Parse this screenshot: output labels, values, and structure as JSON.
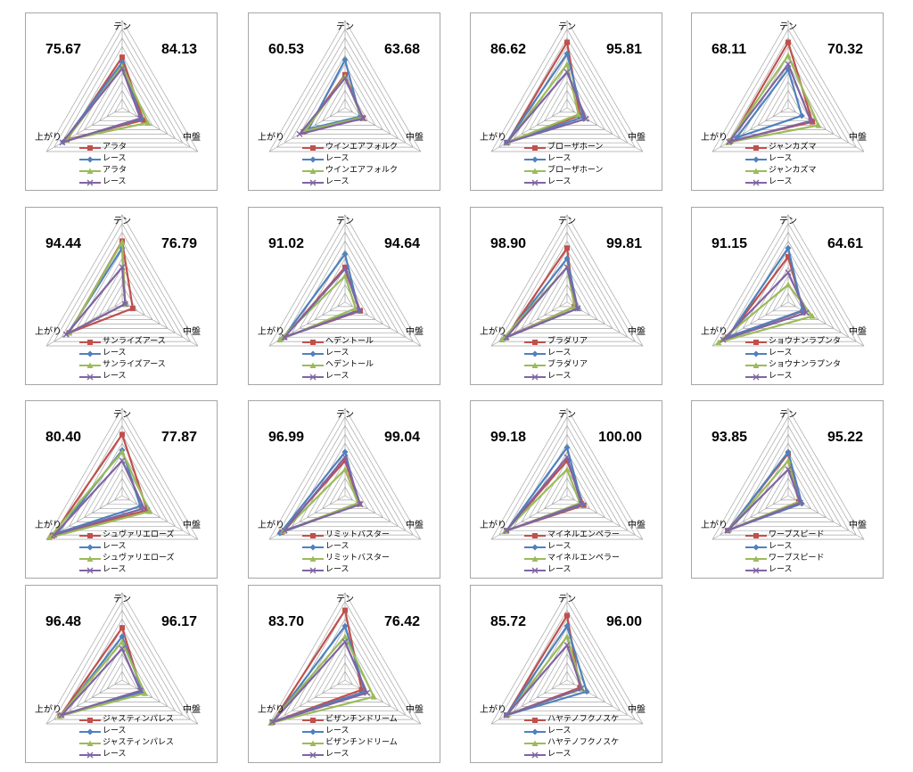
{
  "axes": [
    "テン",
    "中盤",
    "上がり"
  ],
  "legend_race_label": "レース",
  "colors": {
    "red": "#c0504d",
    "blue": "#4f81bd",
    "green": "#9bbb59",
    "purple": "#8064a2",
    "grid": "#a6a6a6"
  },
  "chart_data": [
    {
      "type": "radar",
      "name": "アラタ",
      "left_value": "75.67",
      "right_value": "84.13",
      "series": [
        {
          "name": "アラタ",
          "values": [
            0.58,
            0.28,
            0.73
          ]
        },
        {
          "name": "レース",
          "values": [
            0.52,
            0.25,
            0.78
          ]
        },
        {
          "name": "アラタ",
          "values": [
            0.48,
            0.34,
            0.74
          ]
        },
        {
          "name": "レース",
          "values": [
            0.45,
            0.24,
            0.79
          ]
        }
      ]
    },
    {
      "type": "radar",
      "name": "ウインエアフォルク",
      "left_value": "60.53",
      "right_value": "63.68",
      "series": [
        {
          "name": "ウインエアフォルク",
          "values": [
            0.38,
            0.23,
            0.55
          ]
        },
        {
          "name": "レース",
          "values": [
            0.55,
            0.2,
            0.48
          ]
        },
        {
          "name": "ウインエアフォルク",
          "values": [
            0.36,
            0.22,
            0.53
          ]
        },
        {
          "name": "レース",
          "values": [
            0.34,
            0.24,
            0.6
          ]
        }
      ]
    },
    {
      "type": "radar",
      "name": "ブローザホーン",
      "left_value": "86.62",
      "right_value": "95.81",
      "series": [
        {
          "name": "ブローザホーン",
          "values": [
            0.75,
            0.17,
            0.79
          ]
        },
        {
          "name": "レース",
          "values": [
            0.62,
            0.21,
            0.8
          ]
        },
        {
          "name": "ブローザホーン",
          "values": [
            0.5,
            0.15,
            0.78
          ]
        },
        {
          "name": "レース",
          "values": [
            0.41,
            0.25,
            0.8
          ]
        }
      ]
    },
    {
      "type": "radar",
      "name": "ジャンカズマ",
      "left_value": "68.11",
      "right_value": "70.32",
      "series": [
        {
          "name": "ジャンカズマ",
          "values": [
            0.75,
            0.32,
            0.76
          ]
        },
        {
          "name": "レース",
          "values": [
            0.44,
            0.18,
            0.68
          ]
        },
        {
          "name": "ジャンカズマ",
          "values": [
            0.6,
            0.4,
            0.79
          ]
        },
        {
          "name": "レース",
          "values": [
            0.5,
            0.3,
            0.78
          ]
        }
      ]
    },
    {
      "type": "radar",
      "name": "サンライズアース",
      "left_value": "94.44",
      "right_value": "76.79",
      "series": [
        {
          "name": "サンライズアース",
          "values": [
            0.7,
            0.14,
            0.7
          ]
        },
        {
          "name": "レース",
          "values": [
            0.62,
            0.04,
            0.72
          ]
        },
        {
          "name": "サンライズアース",
          "values": [
            0.69,
            0.04,
            0.7
          ]
        },
        {
          "name": "レース",
          "values": [
            0.4,
            0.04,
            0.74
          ]
        }
      ]
    },
    {
      "type": "radar",
      "name": "ヘデントール",
      "left_value": "91.02",
      "right_value": "94.64",
      "series": [
        {
          "name": "ヘデントール",
          "values": [
            0.4,
            0.2,
            0.8
          ]
        },
        {
          "name": "レース",
          "values": [
            0.55,
            0.18,
            0.82
          ]
        },
        {
          "name": "ヘデントール",
          "values": [
            0.3,
            0.14,
            0.86
          ]
        },
        {
          "name": "レース",
          "values": [
            0.38,
            0.19,
            0.8
          ]
        }
      ]
    },
    {
      "type": "radar",
      "name": "ブラダリア",
      "left_value": "98.90",
      "right_value": "99.81",
      "series": [
        {
          "name": "ブラダリア",
          "values": [
            0.62,
            0.1,
            0.81
          ]
        },
        {
          "name": "レース",
          "values": [
            0.5,
            0.14,
            0.82
          ]
        },
        {
          "name": "ブラダリア",
          "values": [
            0.4,
            0.1,
            0.86
          ]
        },
        {
          "name": "レース",
          "values": [
            0.4,
            0.14,
            0.8
          ]
        }
      ]
    },
    {
      "type": "radar",
      "name": "ショウナンラプンタ",
      "left_value": "91.15",
      "right_value": "64.61",
      "series": [
        {
          "name": "ショウナンラプンタ",
          "values": [
            0.52,
            0.2,
            0.8
          ]
        },
        {
          "name": "レース",
          "values": [
            0.62,
            0.19,
            0.8
          ]
        },
        {
          "name": "ショウナンラプンタ",
          "values": [
            0.2,
            0.32,
            0.92
          ]
        },
        {
          "name": "レース",
          "values": [
            0.34,
            0.24,
            0.86
          ]
        }
      ]
    },
    {
      "type": "radar",
      "name": "シュヴァリエローズ",
      "left_value": "80.40",
      "right_value": "77.87",
      "series": [
        {
          "name": "シュヴァリエローズ",
          "values": [
            0.7,
            0.33,
            0.92
          ]
        },
        {
          "name": "レース",
          "values": [
            0.52,
            0.24,
            0.86
          ]
        },
        {
          "name": "シュヴァリエローズ",
          "values": [
            0.5,
            0.36,
            0.96
          ]
        },
        {
          "name": "レース",
          "values": [
            0.4,
            0.29,
            0.9
          ]
        }
      ]
    },
    {
      "type": "radar",
      "name": "リミットバスター",
      "left_value": "96.99",
      "right_value": "99.04",
      "series": [
        {
          "name": "リミットバスター",
          "values": [
            0.4,
            0.19,
            0.84
          ]
        },
        {
          "name": "レース",
          "values": [
            0.5,
            0.18,
            0.86
          ]
        },
        {
          "name": "リミットバスター",
          "values": [
            0.3,
            0.17,
            0.82
          ]
        },
        {
          "name": "レース",
          "values": [
            0.44,
            0.2,
            0.8
          ]
        }
      ]
    },
    {
      "type": "radar",
      "name": "マイネルエンペラー",
      "left_value": "99.18",
      "right_value": "100.00",
      "series": [
        {
          "name": "マイネルエンペラー",
          "values": [
            0.4,
            0.22,
            0.8
          ]
        },
        {
          "name": "レース",
          "values": [
            0.55,
            0.2,
            0.8
          ]
        },
        {
          "name": "マイネルエンペラー",
          "values": [
            0.3,
            0.17,
            0.82
          ]
        },
        {
          "name": "レース",
          "values": [
            0.44,
            0.19,
            0.8
          ]
        }
      ]
    },
    {
      "type": "radar",
      "name": "ワープスピード",
      "left_value": "93.85",
      "right_value": "95.22",
      "series": [
        {
          "name": "ワープスピード",
          "values": [
            0.48,
            0.14,
            0.8
          ]
        },
        {
          "name": "レース",
          "values": [
            0.5,
            0.18,
            0.79
          ]
        },
        {
          "name": "ワープスピード",
          "values": [
            0.4,
            0.14,
            0.78
          ]
        },
        {
          "name": "レース",
          "values": [
            0.3,
            0.16,
            0.8
          ]
        }
      ]
    },
    {
      "type": "radar",
      "name": "ジャスティンパレス",
      "left_value": "96.48",
      "right_value": "96.17",
      "series": [
        {
          "name": "ジャスティンパレス",
          "values": [
            0.6,
            0.26,
            0.82
          ]
        },
        {
          "name": "レース",
          "values": [
            0.5,
            0.27,
            0.8
          ]
        },
        {
          "name": "ジャスティンパレス",
          "values": [
            0.44,
            0.3,
            0.82
          ]
        },
        {
          "name": "レース",
          "values": [
            0.36,
            0.24,
            0.8
          ]
        }
      ]
    },
    {
      "type": "radar",
      "name": "ビザンチンドリーム",
      "left_value": "83.70",
      "right_value": "76.42",
      "series": [
        {
          "name": "ビザンチンドリーム",
          "values": [
            0.8,
            0.22,
            0.96
          ]
        },
        {
          "name": "レース",
          "values": [
            0.62,
            0.26,
            0.96
          ]
        },
        {
          "name": "ビザンチンドリーム",
          "values": [
            0.5,
            0.38,
            0.98
          ]
        },
        {
          "name": "レース",
          "values": [
            0.44,
            0.29,
            0.96
          ]
        }
      ]
    },
    {
      "type": "radar",
      "name": "ハヤテノフクノスケ",
      "left_value": "85.72",
      "right_value": "96.00",
      "series": [
        {
          "name": "ハヤテノフクノスケ",
          "values": [
            0.74,
            0.17,
            0.8
          ]
        },
        {
          "name": "レース",
          "values": [
            0.62,
            0.26,
            0.8
          ]
        },
        {
          "name": "ハヤテノフクノスケ",
          "values": [
            0.5,
            0.2,
            0.78
          ]
        },
        {
          "name": "レース",
          "values": [
            0.4,
            0.19,
            0.8
          ]
        }
      ]
    }
  ]
}
